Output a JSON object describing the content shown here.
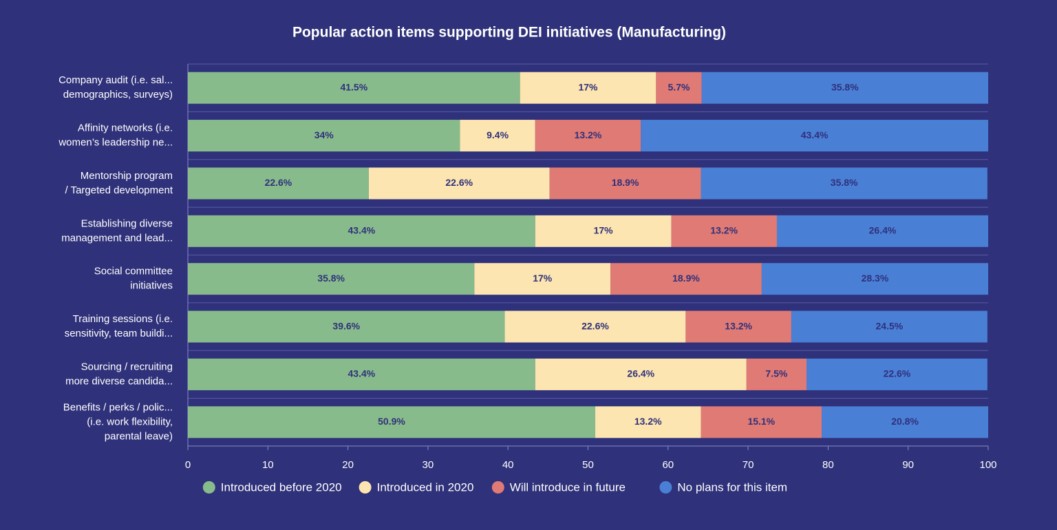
{
  "chart_data": {
    "type": "stacked-bar-horizontal",
    "title": "Popular action items supporting DEI initiatives (Manufacturing)",
    "categories": [
      [
        "Company audit (i.e. sal...",
        "demographics, surveys)"
      ],
      [
        "Affinity networks (i.e.",
        "women’s leadership ne..."
      ],
      [
        "Mentorship program",
        "/ Targeted development"
      ],
      [
        "Establishing diverse",
        "management and lead..."
      ],
      [
        "Social committee",
        "initiatives"
      ],
      [
        "Training sessions (i.e.",
        "sensitivity, team buildi..."
      ],
      [
        "Sourcing / recruiting",
        "more diverse candida..."
      ],
      [
        "Benefits / perks / polic...",
        "(i.e. work flexibility,",
        "parental leave)"
      ]
    ],
    "series": [
      {
        "name": "Introduced before 2020",
        "color": "#88bb8c",
        "values": [
          41.5,
          34,
          22.6,
          43.4,
          35.8,
          39.6,
          43.4,
          50.9
        ],
        "value_labels": [
          "41.5%",
          "34%",
          "22.6%",
          "43.4%",
          "35.8%",
          "39.6%",
          "43.4%",
          "50.9%"
        ]
      },
      {
        "name": "Introduced in 2020",
        "color": "#fce5b0",
        "values": [
          17,
          9.4,
          22.6,
          17,
          17,
          22.6,
          26.4,
          13.2
        ],
        "value_labels": [
          "17%",
          "9.4%",
          "22.6%",
          "17%",
          "17%",
          "22.6%",
          "26.4%",
          "13.2%"
        ]
      },
      {
        "name": "Will introduce in future",
        "color": "#e07a74",
        "values": [
          5.7,
          13.2,
          18.9,
          13.2,
          18.9,
          13.2,
          7.5,
          15.1
        ],
        "value_labels": [
          "5.7%",
          "13.2%",
          "18.9%",
          "13.2%",
          "18.9%",
          "13.2%",
          "7.5%",
          "15.1%"
        ]
      },
      {
        "name": "No plans for this item",
        "color": "#4a7fd6",
        "values": [
          35.8,
          43.4,
          35.8,
          26.4,
          28.3,
          24.5,
          22.6,
          20.8
        ],
        "value_labels": [
          "35.8%",
          "43.4%",
          "35.8%",
          "26.4%",
          "28.3%",
          "24.5%",
          "22.6%",
          "20.8%"
        ]
      }
    ],
    "xlim": [
      0,
      100
    ],
    "xticks": [
      0,
      10,
      20,
      30,
      40,
      50,
      60,
      70,
      80,
      90,
      100
    ]
  }
}
